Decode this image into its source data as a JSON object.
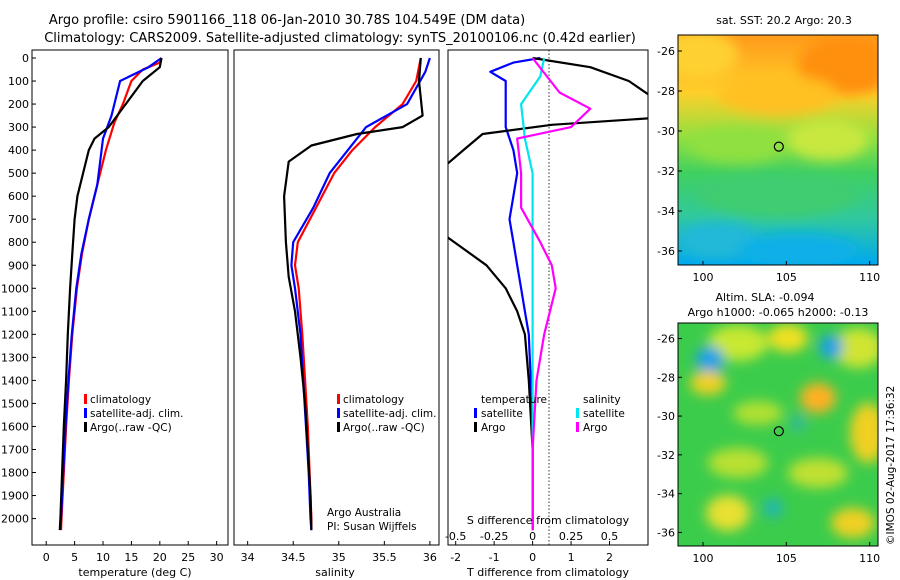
{
  "header": {
    "title_line1": "Argo profile: csiro 5901166_118 06-Jan-2010 30.78S 104.549E (DM data)",
    "title_line2": "Climatology: CARS2009. Satellite-adjusted climatology: synTS_20100106.nc (0.42d earlier)"
  },
  "colors": {
    "climatology": "#ff0000",
    "satellite_adj": "#0000ff",
    "argo": "#000000",
    "salinity_sat": "#00e5ee",
    "salinity_argo": "#ff00ff"
  },
  "depth_ticks": [
    "0",
    "100",
    "200",
    "300",
    "400",
    "500",
    "600",
    "700",
    "800",
    "900",
    "1000",
    "1100",
    "1200",
    "1300",
    "1400",
    "1500",
    "1600",
    "1700",
    "1800",
    "1900",
    "2000"
  ],
  "chart_data": [
    {
      "type": "line",
      "xlabel": "temperature (deg C)",
      "xticks": [
        "0",
        "5",
        "10",
        "15",
        "20",
        "25",
        "30"
      ],
      "xlim": [
        -2.5,
        32
      ],
      "ylim": [
        2100,
        0
      ],
      "legend": [
        "climatology",
        "satellite-adj. clim.",
        "Argo(..raw -QC)"
      ],
      "series": [
        {
          "name": "climatology",
          "color": "#ff0000",
          "points": [
            [
              20.3,
              0
            ],
            [
              20,
              20
            ],
            [
              17,
              50
            ],
            [
              15,
              100
            ],
            [
              13.5,
              200
            ],
            [
              12,
              280
            ],
            [
              10.5,
              400
            ],
            [
              9,
              550
            ],
            [
              7.5,
              700
            ],
            [
              6.3,
              850
            ],
            [
              5.4,
              1000
            ],
            [
              4.6,
              1200
            ],
            [
              4.0,
              1400
            ],
            [
              3.5,
              1600
            ],
            [
              3.1,
              1800
            ],
            [
              2.7,
              2000
            ],
            [
              2.6,
              2050
            ]
          ]
        },
        {
          "name": "satellite-adj. clim.",
          "color": "#0000ff",
          "points": [
            [
              20.3,
              0
            ],
            [
              18,
              40
            ],
            [
              13,
              100
            ],
            [
              11.5,
              250
            ],
            [
              10,
              350
            ],
            [
              9,
              550
            ],
            [
              7.5,
              700
            ],
            [
              6.2,
              850
            ],
            [
              5.3,
              1000
            ],
            [
              4.5,
              1200
            ],
            [
              3.9,
              1400
            ],
            [
              3.4,
              1600
            ],
            [
              3.0,
              1800
            ],
            [
              2.6,
              2000
            ],
            [
              2.5,
              2050
            ]
          ]
        },
        {
          "name": "Argo(..raw -QC)",
          "color": "#000000",
          "points": [
            [
              20.3,
              0
            ],
            [
              20,
              40
            ],
            [
              17,
              100
            ],
            [
              14,
              200
            ],
            [
              11,
              300
            ],
            [
              8.5,
              350
            ],
            [
              7.5,
              400
            ],
            [
              6.5,
              500
            ],
            [
              5.5,
              600
            ],
            [
              5.0,
              700
            ],
            [
              4.6,
              850
            ],
            [
              4.2,
              1000
            ],
            [
              3.8,
              1200
            ],
            [
              3.5,
              1400
            ],
            [
              3.1,
              1600
            ],
            [
              2.8,
              1800
            ],
            [
              2.5,
              2000
            ],
            [
              2.4,
              2050
            ]
          ]
        }
      ]
    },
    {
      "type": "line",
      "xlabel": "salinity",
      "xticks": [
        "34",
        "34.5",
        "35",
        "35.5",
        "36"
      ],
      "xlim": [
        33.85,
        36.1
      ],
      "ylim": [
        2100,
        0
      ],
      "legend": [
        "climatology",
        "satellite-adj. clim.",
        "Argo(..raw -QC)"
      ],
      "annotation": [
        "Argo Australia",
        "PI: Susan Wijffels"
      ],
      "series": [
        {
          "name": "climatology",
          "color": "#ff0000",
          "points": [
            [
              35.9,
              0
            ],
            [
              35.85,
              100
            ],
            [
              35.7,
              200
            ],
            [
              35.4,
              300
            ],
            [
              35.15,
              400
            ],
            [
              34.95,
              500
            ],
            [
              34.75,
              650
            ],
            [
              34.55,
              800
            ],
            [
              34.52,
              900
            ],
            [
              34.56,
              1000
            ],
            [
              34.6,
              1200
            ],
            [
              34.63,
              1400
            ],
            [
              34.66,
              1600
            ],
            [
              34.68,
              1800
            ],
            [
              34.7,
              2000
            ],
            [
              34.7,
              2050
            ]
          ]
        },
        {
          "name": "satellite-adj. clim.",
          "color": "#0000ff",
          "points": [
            [
              36.0,
              0
            ],
            [
              35.95,
              60
            ],
            [
              35.75,
              200
            ],
            [
              35.3,
              300
            ],
            [
              35.1,
              400
            ],
            [
              34.9,
              500
            ],
            [
              34.72,
              650
            ],
            [
              34.5,
              800
            ],
            [
              34.48,
              900
            ],
            [
              34.52,
              1000
            ],
            [
              34.58,
              1200
            ],
            [
              34.61,
              1400
            ],
            [
              34.64,
              1600
            ],
            [
              34.67,
              1800
            ],
            [
              34.69,
              2000
            ],
            [
              34.7,
              2050
            ]
          ]
        },
        {
          "name": "Argo(..raw -QC)",
          "color": "#000000",
          "points": [
            [
              35.9,
              0
            ],
            [
              35.88,
              100
            ],
            [
              35.92,
              250
            ],
            [
              35.7,
              300
            ],
            [
              35.2,
              330
            ],
            [
              34.7,
              380
            ],
            [
              34.45,
              450
            ],
            [
              34.4,
              600
            ],
            [
              34.42,
              800
            ],
            [
              34.45,
              950
            ],
            [
              34.52,
              1100
            ],
            [
              34.58,
              1300
            ],
            [
              34.63,
              1500
            ],
            [
              34.66,
              1700
            ],
            [
              34.69,
              1900
            ],
            [
              34.7,
              2050
            ]
          ]
        }
      ]
    },
    {
      "type": "line",
      "xlabel": "T difference from climatology",
      "xlabel_top": "S difference from climatology",
      "xticks": [
        "-2",
        "-1",
        "0",
        "1",
        "2"
      ],
      "xticks_top": [
        "-0.5",
        "-0.25",
        "0",
        "0.25",
        "0.5"
      ],
      "xlim": [
        -2.2,
        3.0
      ],
      "ylim": [
        2100,
        0
      ],
      "legend_titles": [
        "temperature",
        "salinity"
      ],
      "legend": [
        "satellite",
        "Argo",
        "satellite",
        "Argo"
      ],
      "series": [
        {
          "name": "satellite",
          "color": "#0000ff",
          "points": [
            [
              0.2,
              0
            ],
            [
              -0.5,
              20
            ],
            [
              -1.1,
              60
            ],
            [
              -0.7,
              100
            ],
            [
              -0.7,
              200
            ],
            [
              -0.7,
              300
            ],
            [
              -0.5,
              400
            ],
            [
              -0.4,
              500
            ],
            [
              -0.5,
              600
            ],
            [
              -0.6,
              700
            ],
            [
              -0.5,
              800
            ],
            [
              -0.4,
              900
            ],
            [
              -0.3,
              1000
            ],
            [
              -0.2,
              1100
            ],
            [
              -0.1,
              1200
            ],
            [
              -0.05,
              1400
            ],
            [
              0,
              1600
            ],
            [
              0,
              2000
            ],
            [
              0,
              2050
            ]
          ]
        },
        {
          "name": "Argo",
          "color": "#000000",
          "points": [
            [
              0,
              0
            ],
            [
              1.5,
              40
            ],
            [
              2.5,
              100
            ],
            [
              3.2,
              180
            ],
            [
              3.2,
              260
            ],
            [
              0.5,
              290
            ],
            [
              -1.3,
              330
            ],
            [
              -1.8,
              400
            ],
            [
              -2.5,
              500
            ],
            [
              -2.5,
              700
            ],
            [
              -2.2,
              780
            ],
            [
              -1.2,
              900
            ],
            [
              -0.7,
              1000
            ],
            [
              -0.4,
              1100
            ],
            [
              -0.2,
              1200
            ],
            [
              -0.1,
              1400
            ],
            [
              0,
              1700
            ],
            [
              0,
              2050
            ]
          ]
        },
        {
          "name": "satellite",
          "color": "#00e5ee",
          "points": [
            [
              0.3,
              0
            ],
            [
              0.2,
              80
            ],
            [
              -0.3,
              200
            ],
            [
              -0.2,
              350
            ],
            [
              0,
              500
            ],
            [
              0,
              900
            ],
            [
              0,
              2000
            ],
            [
              0,
              2050
            ]
          ]
        },
        {
          "name": "Argo",
          "color": "#ff00ff",
          "points": [
            [
              0,
              0
            ],
            [
              0.7,
              150
            ],
            [
              1.5,
              220
            ],
            [
              1.0,
              300
            ],
            [
              -0.4,
              350
            ],
            [
              -0.3,
              500
            ],
            [
              -0.3,
              650
            ],
            [
              0.2,
              800
            ],
            [
              0.5,
              900
            ],
            [
              0.6,
              1000
            ],
            [
              0.3,
              1200
            ],
            [
              0.1,
              1400
            ],
            [
              0,
              1700
            ],
            [
              0,
              2050
            ]
          ]
        }
      ]
    },
    {
      "type": "heatmap",
      "title": "sat. SST: 20.2 Argo: 20.3",
      "xticks": [
        "100",
        "105",
        "110"
      ],
      "yticks": [
        "-26",
        "-28",
        "-30",
        "-32",
        "-34",
        "-36"
      ],
      "xlim": [
        98.5,
        110.5
      ],
      "ylim": [
        -36.7,
        -25.2
      ],
      "marker": [
        104.549,
        -30.78
      ]
    },
    {
      "type": "heatmap",
      "title_line1": "Altim. SLA: -0.094",
      "title_line2": "Argo h1000: -0.065 h2000: -0.13",
      "xticks": [
        "100",
        "105",
        "110"
      ],
      "yticks": [
        "-26",
        "-28",
        "-30",
        "-32",
        "-34",
        "-36"
      ],
      "xlim": [
        98.5,
        110.5
      ],
      "ylim": [
        -36.7,
        -25.2
      ],
      "marker": [
        104.549,
        -30.78
      ]
    }
  ],
  "footer_stamp": "©IMOS 02-Aug-2017 17:36:32"
}
